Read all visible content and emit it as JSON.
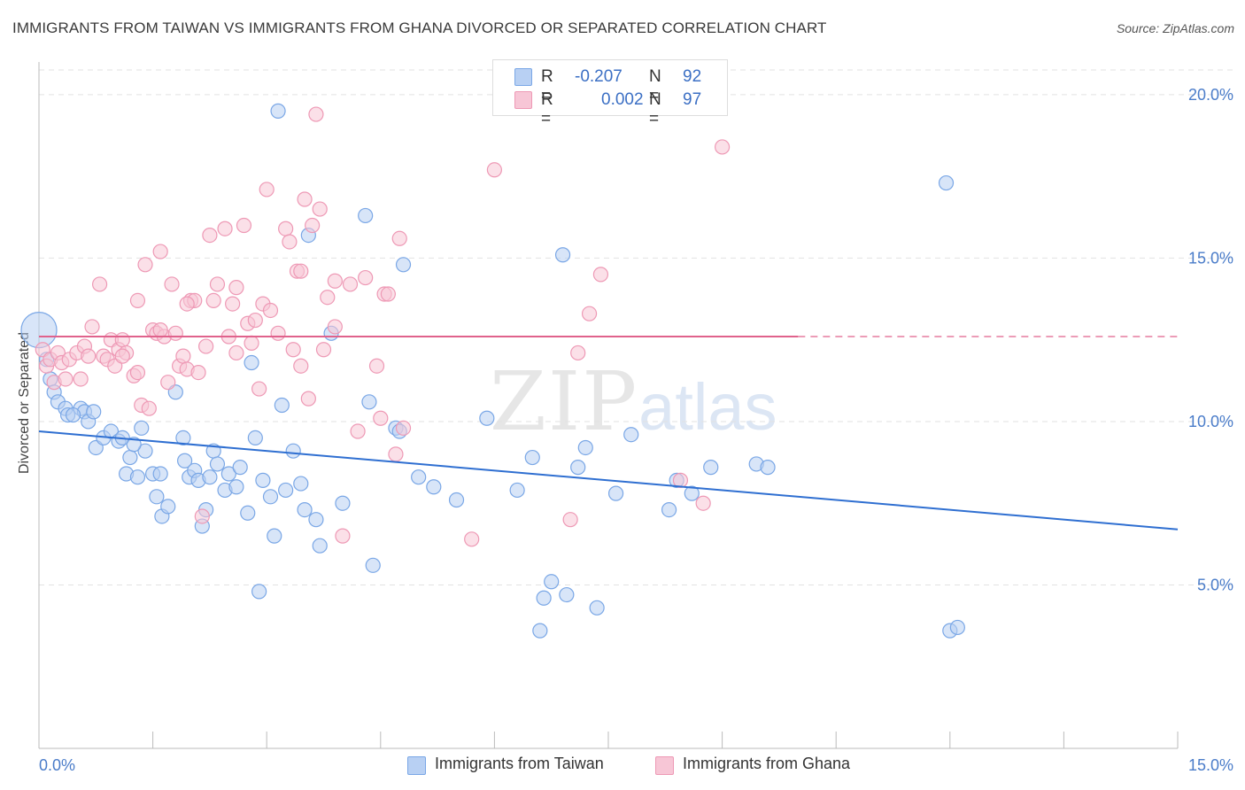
{
  "title": "IMMIGRANTS FROM TAIWAN VS IMMIGRANTS FROM GHANA DIVORCED OR SEPARATED CORRELATION CHART",
  "source": "Source: ZipAtlas.com",
  "watermark": {
    "zip": "ZIP",
    "atlas": "atlas"
  },
  "legend": {
    "taiwan": {
      "r_label": "R =",
      "r_value": "-0.207",
      "n_label": "N =",
      "n_value": "92"
    },
    "ghana": {
      "r_label": "R =",
      "r_value": "0.002",
      "n_label": "N =",
      "n_value": "97"
    }
  },
  "bottom_legend": {
    "taiwan": "Immigrants from Taiwan",
    "ghana": "Immigrants from Ghana"
  },
  "colors": {
    "taiwan_fill": "#b8d0f3",
    "taiwan_stroke": "#7aa7e6",
    "taiwan_line": "#2f6fd1",
    "ghana_fill": "#f7c6d6",
    "ghana_stroke": "#ee99b5",
    "ghana_line": "#e0628c",
    "tick_text": "#4a7cc9",
    "grid": "#e2e2e2"
  },
  "chart_data": {
    "type": "scatter",
    "title": "IMMIGRANTS FROM TAIWAN VS IMMIGRANTS FROM GHANA DIVORCED OR SEPARATED CORRELATION CHART",
    "xlabel": "",
    "ylabel": "Divorced or Separated",
    "xlim": [
      0,
      15
    ],
    "ylim": [
      0,
      21
    ],
    "x_tick_labels": [
      "0.0%",
      "15.0%"
    ],
    "y_ticks": [
      5,
      10,
      15,
      20
    ],
    "y_tick_labels": [
      "5.0%",
      "10.0%",
      "15.0%",
      "20.0%"
    ],
    "grid": true,
    "legend_position": "top-center",
    "series": [
      {
        "name": "Immigrants from Taiwan",
        "r": -0.207,
        "n": 92,
        "trend": {
          "x": [
            0,
            15
          ],
          "y": [
            9.7,
            6.7
          ]
        },
        "points": [
          [
            0.0,
            12.8
          ],
          [
            0.15,
            11.3
          ],
          [
            0.2,
            10.9
          ],
          [
            0.25,
            10.6
          ],
          [
            0.35,
            10.4
          ],
          [
            0.38,
            10.2
          ],
          [
            0.55,
            10.4
          ],
          [
            0.6,
            10.3
          ],
          [
            0.65,
            10.0
          ],
          [
            0.72,
            10.3
          ],
          [
            0.75,
            9.2
          ],
          [
            0.85,
            9.5
          ],
          [
            0.95,
            9.7
          ],
          [
            1.05,
            9.4
          ],
          [
            1.1,
            9.5
          ],
          [
            1.15,
            8.4
          ],
          [
            1.2,
            8.9
          ],
          [
            1.3,
            8.3
          ],
          [
            1.35,
            9.8
          ],
          [
            1.4,
            9.1
          ],
          [
            1.5,
            8.4
          ],
          [
            1.55,
            7.7
          ],
          [
            1.6,
            8.4
          ],
          [
            1.62,
            7.1
          ],
          [
            1.7,
            7.4
          ],
          [
            1.8,
            10.9
          ],
          [
            1.9,
            9.5
          ],
          [
            1.92,
            8.8
          ],
          [
            1.98,
            8.3
          ],
          [
            2.05,
            8.5
          ],
          [
            2.1,
            8.2
          ],
          [
            2.15,
            6.8
          ],
          [
            2.2,
            7.3
          ],
          [
            2.3,
            9.1
          ],
          [
            2.35,
            8.7
          ],
          [
            2.45,
            7.9
          ],
          [
            2.5,
            8.4
          ],
          [
            2.6,
            8.0
          ],
          [
            2.65,
            8.6
          ],
          [
            2.75,
            7.2
          ],
          [
            2.8,
            11.8
          ],
          [
            2.85,
            9.5
          ],
          [
            2.9,
            4.8
          ],
          [
            2.95,
            8.2
          ],
          [
            3.05,
            7.7
          ],
          [
            3.1,
            6.5
          ],
          [
            3.2,
            10.5
          ],
          [
            3.25,
            7.9
          ],
          [
            3.35,
            9.1
          ],
          [
            3.45,
            8.1
          ],
          [
            3.5,
            7.3
          ],
          [
            3.55,
            15.7
          ],
          [
            3.65,
            7.0
          ],
          [
            3.7,
            6.2
          ],
          [
            3.85,
            12.7
          ],
          [
            4.0,
            7.5
          ],
          [
            4.3,
            16.3
          ],
          [
            4.35,
            10.6
          ],
          [
            4.4,
            5.6
          ],
          [
            4.7,
            9.8
          ],
          [
            4.8,
            14.8
          ],
          [
            5.0,
            8.3
          ],
          [
            5.2,
            8.0
          ],
          [
            5.5,
            7.6
          ],
          [
            5.9,
            10.1
          ],
          [
            6.3,
            7.9
          ],
          [
            6.5,
            8.9
          ],
          [
            6.6,
            3.6
          ],
          [
            6.65,
            4.6
          ],
          [
            6.75,
            5.1
          ],
          [
            6.9,
            15.1
          ],
          [
            6.95,
            4.7
          ],
          [
            7.1,
            8.6
          ],
          [
            7.2,
            9.2
          ],
          [
            7.35,
            4.3
          ],
          [
            7.6,
            7.8
          ],
          [
            7.8,
            9.6
          ],
          [
            8.3,
            7.3
          ],
          [
            8.4,
            8.2
          ],
          [
            8.6,
            7.8
          ],
          [
            8.85,
            8.6
          ],
          [
            9.45,
            8.7
          ],
          [
            9.6,
            8.6
          ],
          [
            11.95,
            17.3
          ],
          [
            12.0,
            3.6
          ],
          [
            12.1,
            3.7
          ],
          [
            3.15,
            19.5
          ],
          [
            0.1,
            11.9
          ],
          [
            0.45,
            10.2
          ],
          [
            1.25,
            9.3
          ],
          [
            2.25,
            8.3
          ],
          [
            4.75,
            9.7
          ]
        ]
      },
      {
        "name": "Immigrants from Ghana",
        "r": 0.002,
        "n": 97,
        "trend": {
          "x": [
            0,
            10
          ],
          "y": [
            12.6,
            12.6
          ]
        },
        "trend_dashed": {
          "x": [
            10,
            15
          ],
          "y": [
            12.6,
            12.6
          ]
        },
        "points": [
          [
            0.05,
            12.2
          ],
          [
            0.1,
            11.7
          ],
          [
            0.15,
            11.9
          ],
          [
            0.2,
            11.2
          ],
          [
            0.25,
            12.1
          ],
          [
            0.3,
            11.8
          ],
          [
            0.4,
            11.9
          ],
          [
            0.5,
            12.1
          ],
          [
            0.55,
            11.3
          ],
          [
            0.6,
            12.3
          ],
          [
            0.7,
            12.9
          ],
          [
            0.8,
            14.2
          ],
          [
            0.85,
            12.0
          ],
          [
            0.9,
            11.9
          ],
          [
            0.95,
            12.5
          ],
          [
            1.0,
            11.7
          ],
          [
            1.05,
            12.2
          ],
          [
            1.1,
            12.5
          ],
          [
            1.15,
            12.1
          ],
          [
            1.25,
            11.4
          ],
          [
            1.3,
            13.7
          ],
          [
            1.35,
            10.5
          ],
          [
            1.4,
            14.8
          ],
          [
            1.45,
            10.4
          ],
          [
            1.5,
            12.8
          ],
          [
            1.55,
            12.7
          ],
          [
            1.6,
            15.2
          ],
          [
            1.65,
            12.6
          ],
          [
            1.7,
            11.2
          ],
          [
            1.75,
            14.2
          ],
          [
            1.8,
            12.7
          ],
          [
            1.85,
            11.7
          ],
          [
            1.9,
            12.0
          ],
          [
            1.95,
            11.6
          ],
          [
            2.0,
            13.7
          ],
          [
            2.05,
            13.7
          ],
          [
            2.1,
            11.5
          ],
          [
            2.15,
            7.1
          ],
          [
            2.2,
            12.3
          ],
          [
            2.25,
            15.7
          ],
          [
            2.3,
            13.7
          ],
          [
            2.35,
            14.2
          ],
          [
            2.45,
            15.9
          ],
          [
            2.5,
            12.6
          ],
          [
            2.55,
            13.6
          ],
          [
            2.6,
            12.1
          ],
          [
            2.7,
            16.0
          ],
          [
            2.75,
            13.0
          ],
          [
            2.85,
            13.1
          ],
          [
            2.9,
            11.0
          ],
          [
            2.95,
            13.6
          ],
          [
            3.0,
            17.1
          ],
          [
            3.05,
            13.4
          ],
          [
            3.15,
            12.7
          ],
          [
            3.25,
            15.9
          ],
          [
            3.3,
            15.5
          ],
          [
            3.35,
            12.2
          ],
          [
            3.4,
            14.6
          ],
          [
            3.45,
            11.7
          ],
          [
            3.5,
            16.8
          ],
          [
            3.55,
            10.7
          ],
          [
            3.6,
            16.0
          ],
          [
            3.7,
            16.5
          ],
          [
            3.75,
            12.2
          ],
          [
            3.8,
            13.8
          ],
          [
            3.9,
            12.9
          ],
          [
            4.0,
            6.5
          ],
          [
            4.1,
            14.2
          ],
          [
            4.2,
            9.7
          ],
          [
            4.3,
            14.4
          ],
          [
            4.5,
            10.1
          ],
          [
            4.55,
            13.9
          ],
          [
            4.6,
            13.9
          ],
          [
            4.7,
            9.0
          ],
          [
            4.75,
            15.6
          ],
          [
            4.8,
            9.8
          ],
          [
            5.7,
            6.4
          ],
          [
            6.0,
            17.7
          ],
          [
            7.0,
            7.0
          ],
          [
            7.1,
            12.1
          ],
          [
            7.25,
            13.3
          ],
          [
            7.4,
            14.5
          ],
          [
            8.45,
            8.2
          ],
          [
            8.75,
            7.5
          ],
          [
            9.0,
            18.4
          ],
          [
            3.65,
            19.4
          ],
          [
            1.3,
            11.5
          ],
          [
            2.6,
            14.1
          ],
          [
            0.35,
            11.3
          ],
          [
            4.45,
            11.7
          ],
          [
            3.9,
            14.3
          ],
          [
            1.95,
            13.6
          ],
          [
            1.1,
            12.0
          ],
          [
            2.8,
            12.4
          ],
          [
            0.65,
            12.0
          ],
          [
            3.45,
            14.6
          ],
          [
            1.6,
            12.8
          ]
        ]
      }
    ]
  }
}
